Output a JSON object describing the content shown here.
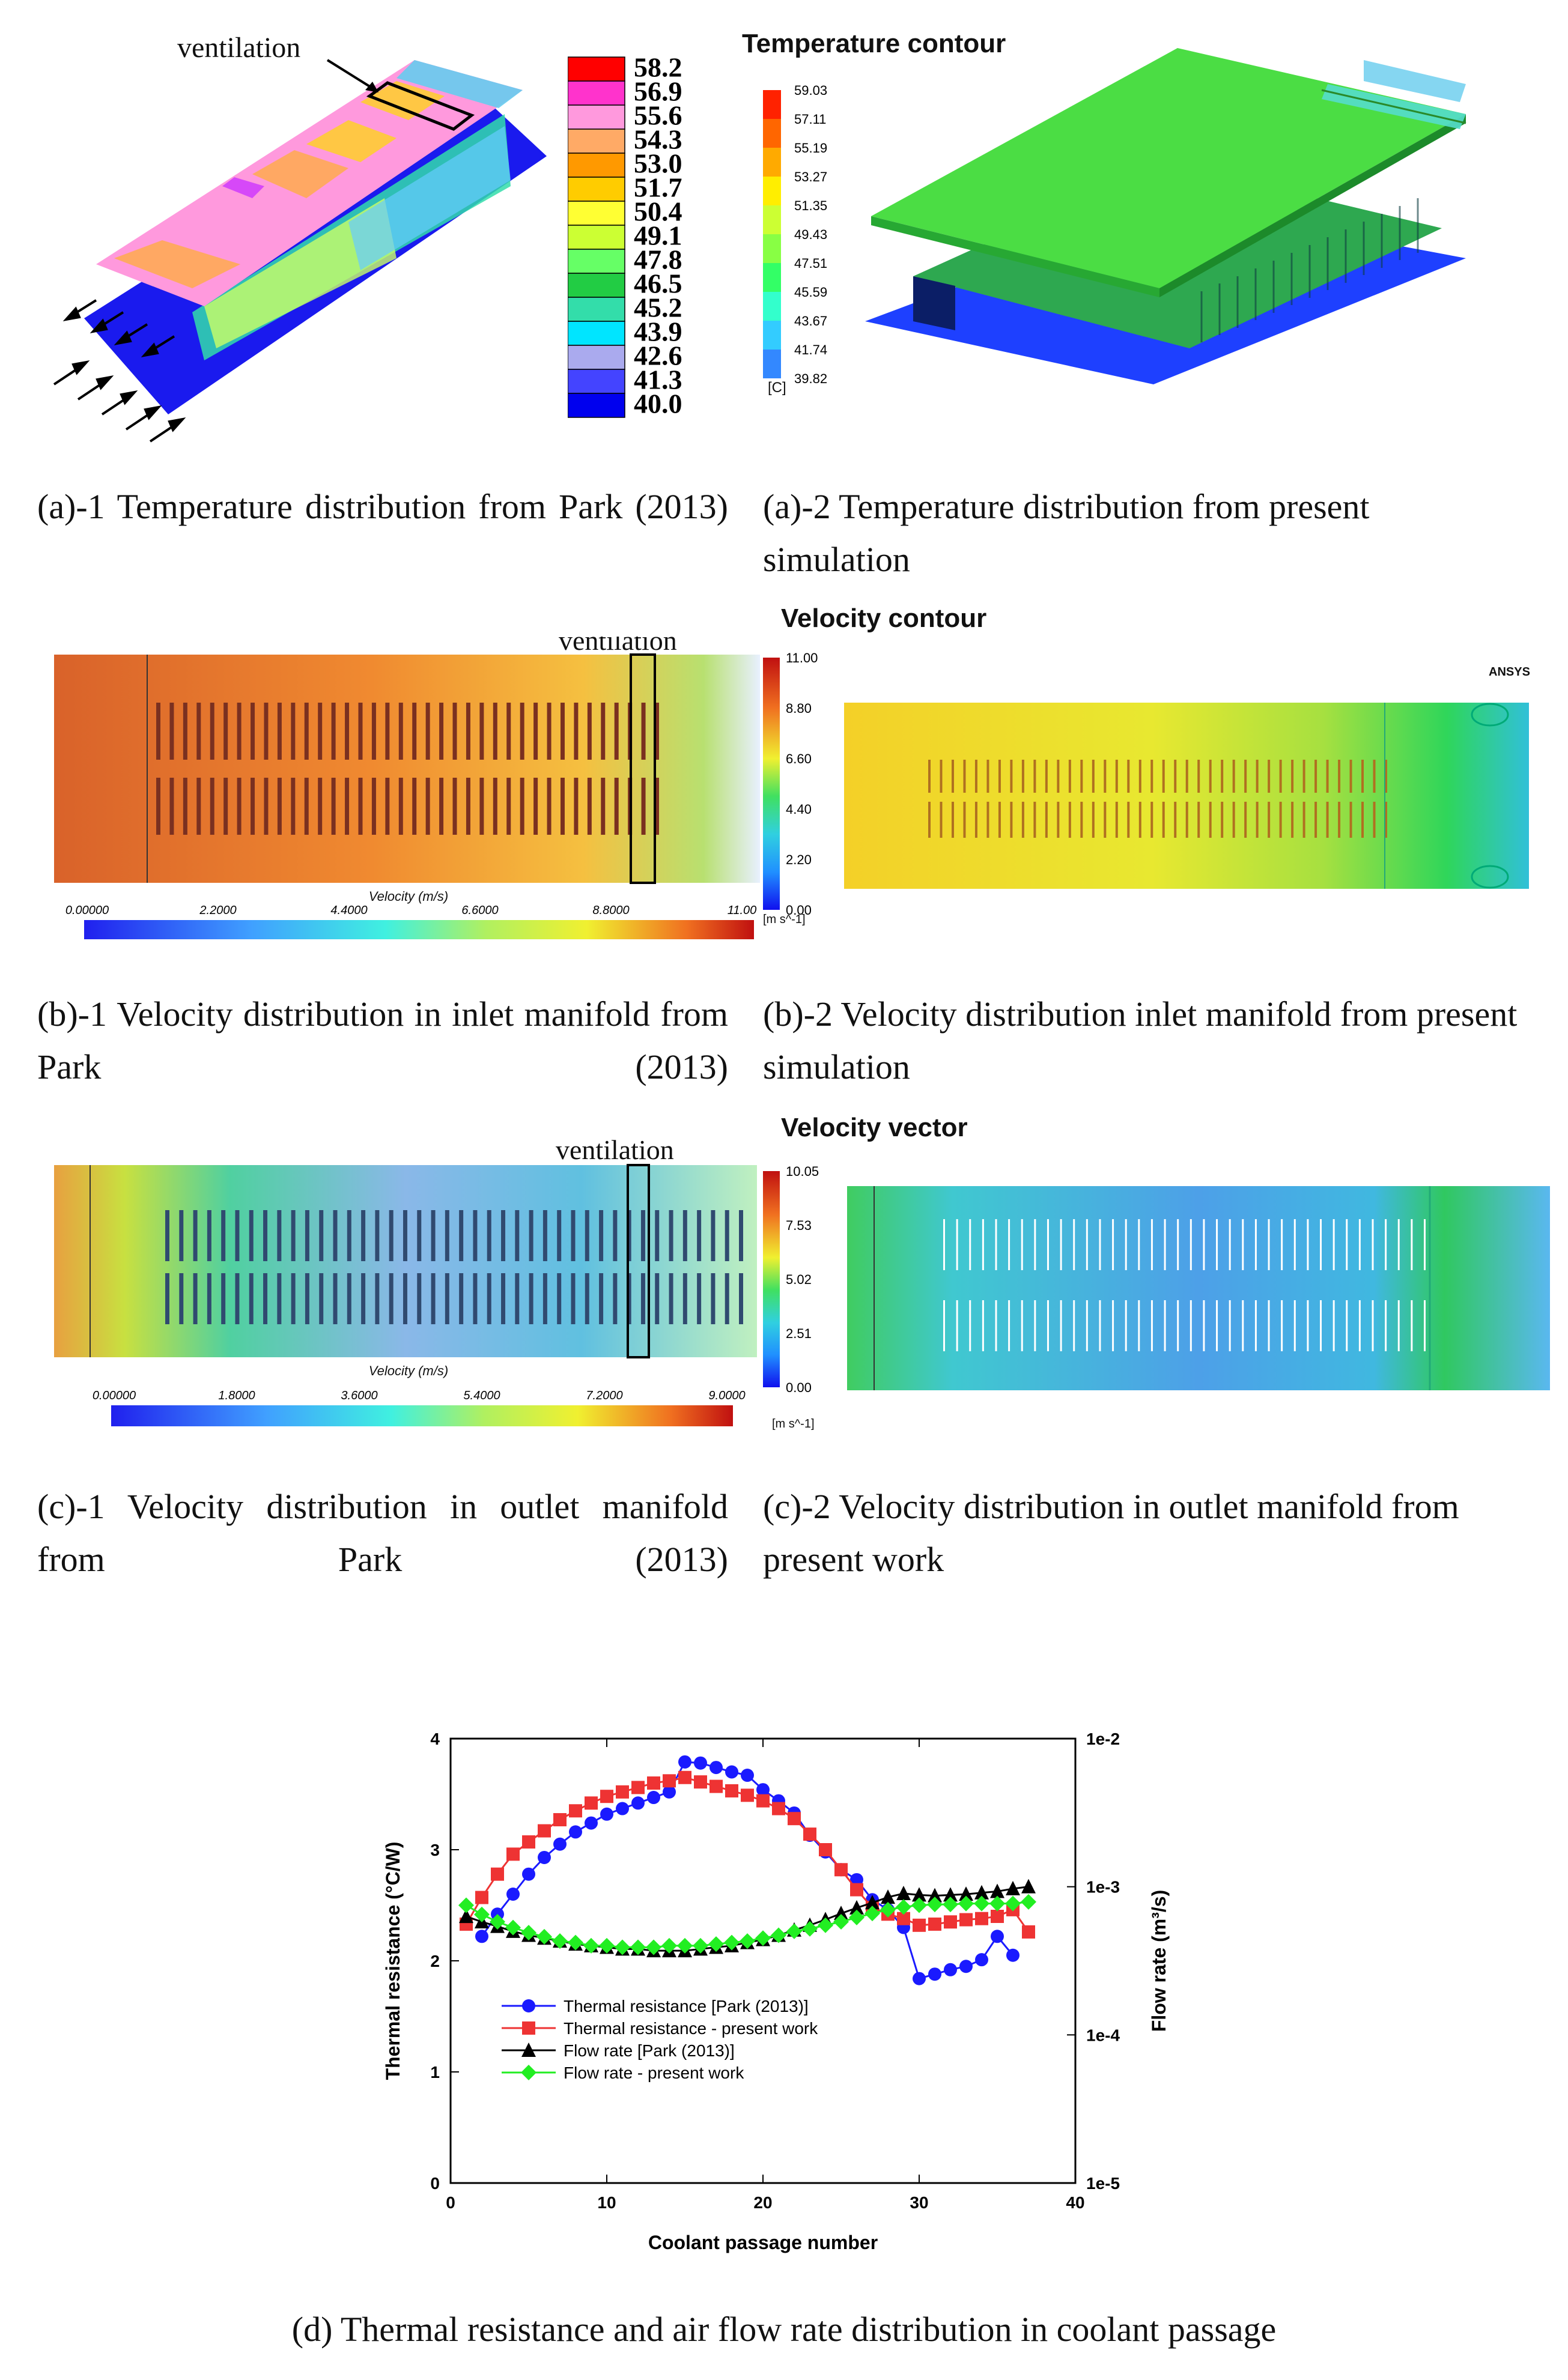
{
  "figure_a1": {
    "ventilation_label": "ventilation",
    "legend_values": [
      "58.2",
      "56.9",
      "55.6",
      "54.3",
      "53.0",
      "51.7",
      "50.4",
      "49.1",
      "47.8",
      "46.5",
      "45.2",
      "43.9",
      "42.6",
      "41.3",
      "40.0"
    ],
    "legend_colors": [
      "#ff0000",
      "#ff33cc",
      "#ff99dd",
      "#ffaa66",
      "#ff9900",
      "#ffcc00",
      "#ffff33",
      "#ccff33",
      "#66ff66",
      "#22cc44",
      "#33ddaa",
      "#00e5ff",
      "#aaaaee",
      "#4444ff",
      "#0000ee"
    ],
    "caption": "(a)-1 Temperature distribution from Park (2013)"
  },
  "figure_a2": {
    "title": "Temperature contour",
    "legend_values": [
      "59.03",
      "57.11",
      "55.19",
      "53.27",
      "51.35",
      "49.43",
      "47.51",
      "45.59",
      "43.67",
      "41.74",
      "39.82"
    ],
    "unit": "[C]",
    "caption": "(a)-2 Temperature distribution from present simulation"
  },
  "figure_b1": {
    "ventilation_label": "ventilation",
    "axis_title": "Velocity (m/s)",
    "ticks": [
      "0.00000",
      "2.2000",
      "4.4000",
      "6.6000",
      "8.8000",
      "11.00"
    ],
    "caption": "(b)-1 Velocity distribution in inlet manifold from Park (2013)"
  },
  "figure_b2": {
    "title": "Velocity contour",
    "legend_values": [
      "11.00",
      "8.80",
      "6.60",
      "4.40",
      "2.20",
      "0.00"
    ],
    "unit": "[m s^-1]",
    "ansys_logo": "ANSYS",
    "caption": "(b)-2 Velocity distribution inlet manifold from present simulation"
  },
  "figure_c1": {
    "ventilation_label": "ventilation",
    "axis_title": "Velocity (m/s)",
    "ticks": [
      "0.00000",
      "1.8000",
      "3.6000",
      "5.4000",
      "7.2000",
      "9.0000"
    ],
    "caption": "(c)-1 Velocity distribution in outlet manifold from Park (2013)"
  },
  "figure_c2": {
    "title": "Velocity vector",
    "legend_values": [
      "10.05",
      "7.53",
      "5.02",
      "2.51",
      "0.00"
    ],
    "unit": "[m s^-1]",
    "caption": "(c)-2 Velocity distribution in outlet manifold from present work"
  },
  "chart_data": {
    "type": "line",
    "title": "",
    "xlabel": "Coolant passage number",
    "ylabel": "Thermal resistance (°C/W)",
    "y2label": "Flow rate (m³/s)",
    "xlim": [
      0,
      40
    ],
    "ylim": [
      0,
      4
    ],
    "y2lim": [
      1e-05,
      0.01
    ],
    "y2scale": "log",
    "x_ticks": [
      "0",
      "10",
      "20",
      "30",
      "40"
    ],
    "y_ticks": [
      "0",
      "1",
      "2",
      "3",
      "4"
    ],
    "y2_ticks": [
      "1e-5",
      "1e-4",
      "1e-3",
      "1e-2"
    ],
    "legend_position": "lower-left",
    "series": [
      {
        "name": "Thermal resistance [Park (2013)]",
        "axis": "left",
        "color": "#1a1aff",
        "marker": "circle",
        "x": [
          2,
          3,
          4,
          5,
          6,
          7,
          8,
          9,
          10,
          11,
          12,
          13,
          14,
          15,
          16,
          17,
          18,
          19,
          20,
          21,
          22,
          23,
          24,
          25,
          26,
          27,
          28,
          29,
          30,
          31,
          32,
          33,
          34,
          35,
          36
        ],
        "y": [
          2.22,
          2.42,
          2.6,
          2.78,
          2.93,
          3.05,
          3.16,
          3.24,
          3.32,
          3.37,
          3.42,
          3.47,
          3.52,
          3.79,
          3.78,
          3.74,
          3.7,
          3.67,
          3.54,
          3.44,
          3.33,
          3.13,
          2.98,
          2.82,
          2.73,
          2.55,
          2.46,
          2.3,
          1.84,
          1.88,
          1.92,
          1.95,
          2.01,
          2.22,
          2.05
        ]
      },
      {
        "name": "Thermal resistance - present work",
        "axis": "left",
        "color": "#ee3333",
        "marker": "square",
        "x": [
          1,
          2,
          3,
          4,
          5,
          6,
          7,
          8,
          9,
          10,
          11,
          12,
          13,
          14,
          15,
          16,
          17,
          18,
          19,
          20,
          21,
          22,
          23,
          24,
          25,
          26,
          27,
          28,
          29,
          30,
          31,
          32,
          33,
          34,
          35,
          36,
          37
        ],
        "y": [
          2.33,
          2.57,
          2.78,
          2.96,
          3.07,
          3.17,
          3.27,
          3.35,
          3.42,
          3.48,
          3.52,
          3.56,
          3.6,
          3.62,
          3.65,
          3.61,
          3.57,
          3.53,
          3.49,
          3.44,
          3.37,
          3.28,
          3.14,
          3.0,
          2.82,
          2.64,
          2.48,
          2.42,
          2.38,
          2.32,
          2.33,
          2.35,
          2.37,
          2.38,
          2.4,
          2.46,
          2.26
        ]
      },
      {
        "name": "Flow rate [Park (2013)]",
        "axis": "right",
        "color": "#000000",
        "marker": "triangle",
        "x": [
          1,
          2,
          3,
          4,
          5,
          6,
          7,
          8,
          9,
          10,
          11,
          12,
          13,
          14,
          15,
          16,
          17,
          18,
          19,
          20,
          21,
          22,
          23,
          24,
          25,
          26,
          27,
          28,
          29,
          30,
          31,
          32,
          33,
          34,
          35,
          36,
          37
        ],
        "y": [
          0.00063,
          0.00058,
          0.00054,
          0.0005,
          0.00047,
          0.00045,
          0.00043,
          0.00041,
          0.0004,
          0.00039,
          0.00038,
          0.00038,
          0.00037,
          0.00037,
          0.00037,
          0.00038,
          0.00039,
          0.0004,
          0.00042,
          0.00044,
          0.00047,
          0.00051,
          0.00055,
          0.0006,
          0.00066,
          0.00072,
          0.00078,
          0.00085,
          0.0009,
          0.00088,
          0.00087,
          0.00088,
          0.00089,
          0.00091,
          0.00093,
          0.00097,
          0.001
        ]
      },
      {
        "name": "Flow rate - present work",
        "axis": "right",
        "color": "#22ee22",
        "marker": "diamond",
        "x": [
          1,
          2,
          3,
          4,
          5,
          6,
          7,
          8,
          9,
          10,
          11,
          12,
          13,
          14,
          15,
          16,
          17,
          18,
          19,
          20,
          21,
          22,
          23,
          24,
          25,
          26,
          27,
          28,
          29,
          30,
          31,
          32,
          33,
          34,
          35,
          36,
          37
        ],
        "y": [
          0.00075,
          0.00065,
          0.00058,
          0.00053,
          0.00049,
          0.00046,
          0.00043,
          0.00042,
          0.0004,
          0.0004,
          0.00039,
          0.00039,
          0.00039,
          0.0004,
          0.0004,
          0.0004,
          0.00041,
          0.00042,
          0.00043,
          0.00045,
          0.00047,
          0.0005,
          0.00052,
          0.00055,
          0.00058,
          0.00062,
          0.00066,
          0.0007,
          0.00073,
          0.00075,
          0.00076,
          0.00076,
          0.00077,
          0.00077,
          0.00077,
          0.00077,
          0.00079
        ]
      }
    ]
  },
  "figure_d": {
    "caption": "(d) Thermal resistance and air flow rate distribution in coolant passage"
  }
}
